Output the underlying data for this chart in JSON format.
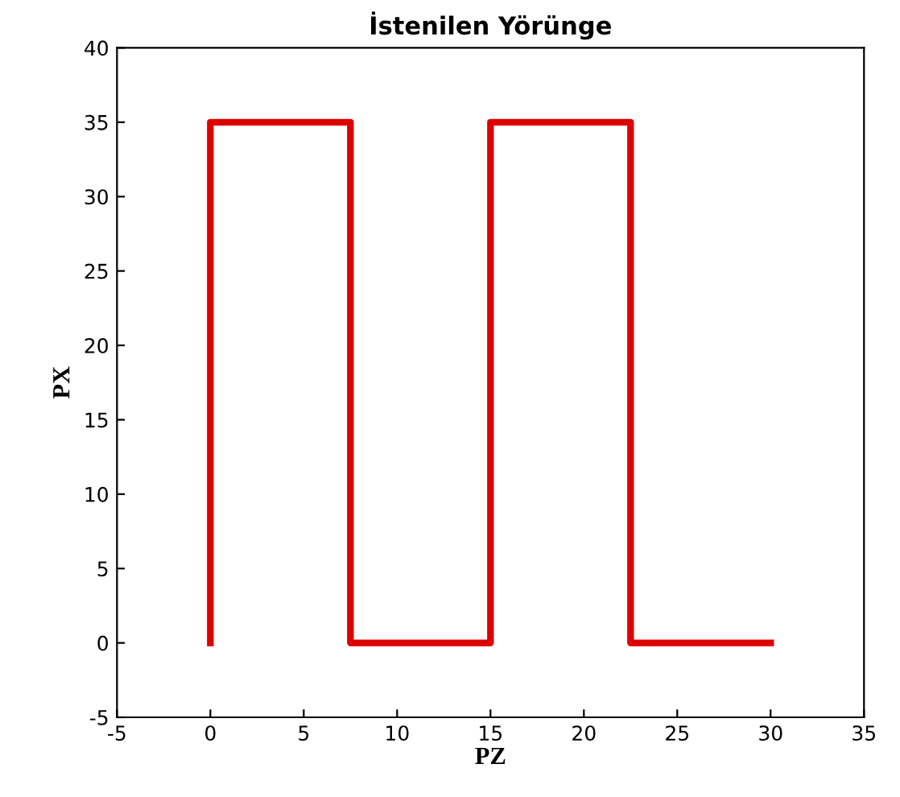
{
  "chart_data": {
    "type": "line",
    "title": "İstenilen Yörünge",
    "xlabel": "PZ",
    "ylabel": "PX",
    "x": [
      0,
      0,
      7.5,
      7.5,
      15,
      15,
      22.5,
      22.5,
      30
    ],
    "series": [
      {
        "color": "#dd0000",
        "values": [
          0,
          35,
          35,
          0,
          0,
          35,
          35,
          0,
          0
        ]
      }
    ],
    "xlim": [
      -5,
      35
    ],
    "xticks": [
      -5,
      0,
      5,
      10,
      15,
      20,
      25,
      30,
      35
    ],
    "ylim": [
      -5,
      40
    ],
    "yticks": [
      -5,
      0,
      5,
      10,
      15,
      20,
      25,
      30,
      35,
      40
    ],
    "grid": false,
    "marker": "none",
    "line_style": "solid"
  }
}
